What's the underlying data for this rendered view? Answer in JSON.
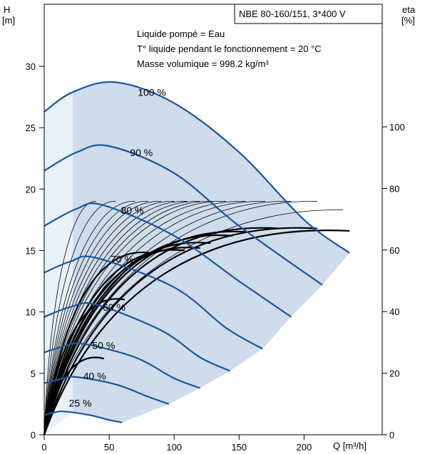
{
  "chart_data": {
    "type": "line",
    "title": "NBE 80-160/151, 3*400 V",
    "notes": [
      "Liquide pompé = Eau",
      "T° liquide pendant le fonctionnement = 20 °C",
      "Masse volumique = 998.2 kg/m³"
    ],
    "xlabel": "Q [m³/h]",
    "ylabel_left": [
      "H",
      "[m]"
    ],
    "ylabel_right": [
      "eta",
      "[%]"
    ],
    "xlim": [
      0,
      250
    ],
    "ylim_left": [
      0,
      35
    ],
    "ylim_right": [
      0,
      140
    ],
    "xticks": [
      0,
      50,
      100,
      150,
      200
    ],
    "yticks_left": [
      0,
      5,
      10,
      15,
      20,
      25,
      30
    ],
    "yticks_right": [
      0,
      20,
      40,
      60,
      80,
      100
    ],
    "grid": false,
    "colors": {
      "head_curve": "#1a56a0",
      "operating_area": "#cfdceb",
      "low_flow_area": "#e8f0fa",
      "efficiency_curve": "#000000"
    },
    "speed_curves": [
      {
        "name": "100 %",
        "points": [
          [
            0,
            26.3
          ],
          [
            22,
            27.9
          ],
          [
            55,
            28.7
          ],
          [
            100,
            27.0
          ],
          [
            150,
            23.0
          ],
          [
            200,
            17.5
          ],
          [
            235,
            14.8
          ]
        ]
      },
      {
        "name": "90 %",
        "points": [
          [
            0,
            21.5
          ],
          [
            25,
            23.0
          ],
          [
            50,
            23.5
          ],
          [
            100,
            21.3
          ],
          [
            150,
            17.0
          ],
          [
            214,
            12.2
          ]
        ]
      },
      {
        "name": "80 %",
        "points": [
          [
            0,
            17.0
          ],
          [
            25,
            18.4
          ],
          [
            45,
            18.7
          ],
          [
            100,
            16.2
          ],
          [
            150,
            12.5
          ],
          [
            190,
            9.6
          ]
        ]
      },
      {
        "name": "70 %",
        "points": [
          [
            0,
            13.2
          ],
          [
            20,
            14.1
          ],
          [
            40,
            14.4
          ],
          [
            100,
            12.0
          ],
          [
            140,
            8.7
          ],
          [
            168,
            7.0
          ]
        ]
      },
      {
        "name": "60 %",
        "points": [
          [
            0,
            9.6
          ],
          [
            20,
            10.4
          ],
          [
            40,
            10.6
          ],
          [
            90,
            8.5
          ],
          [
            120,
            6.3
          ],
          [
            143,
            5.2
          ]
        ]
      },
      {
        "name": "50 %",
        "points": [
          [
            0,
            6.7
          ],
          [
            15,
            7.2
          ],
          [
            30,
            7.4
          ],
          [
            70,
            6.3
          ],
          [
            100,
            4.6
          ],
          [
            120,
            3.8
          ]
        ]
      },
      {
        "name": "40 %",
        "points": [
          [
            0,
            4.2
          ],
          [
            15,
            4.6
          ],
          [
            25,
            4.7
          ],
          [
            55,
            4.1
          ],
          [
            80,
            3.1
          ],
          [
            96,
            2.5
          ]
        ]
      },
      {
        "name": "25 %",
        "points": [
          [
            0,
            1.6
          ],
          [
            7,
            1.8
          ],
          [
            15,
            1.9
          ],
          [
            35,
            1.6
          ],
          [
            50,
            1.2
          ],
          [
            60,
            1.0
          ]
        ]
      }
    ],
    "efficiency_curves": {
      "thin_ends": [
        [
          40,
          19.0
        ],
        [
          55,
          19.0
        ],
        [
          70,
          19.0
        ],
        [
          80,
          19.0
        ],
        [
          90,
          19.0
        ],
        [
          100,
          19.0
        ],
        [
          110,
          19.0
        ],
        [
          120,
          19.0
        ],
        [
          130,
          19.0
        ],
        [
          140,
          19.0
        ],
        [
          155,
          19.0
        ],
        [
          170,
          19.0
        ],
        [
          190,
          19.0
        ],
        [
          210,
          19.0
        ],
        [
          230,
          18.3
        ]
      ],
      "thick_ends": [
        [
          46,
          6.2
        ],
        [
          62,
          11.0
        ],
        [
          82,
          14.8
        ],
        [
          108,
          15.0
        ],
        [
          120,
          15.2
        ],
        [
          128,
          15.6
        ],
        [
          145,
          16.2
        ],
        [
          158,
          16.5
        ],
        [
          180,
          16.8
        ],
        [
          210,
          16.8
        ],
        [
          235,
          16.6
        ]
      ]
    }
  }
}
